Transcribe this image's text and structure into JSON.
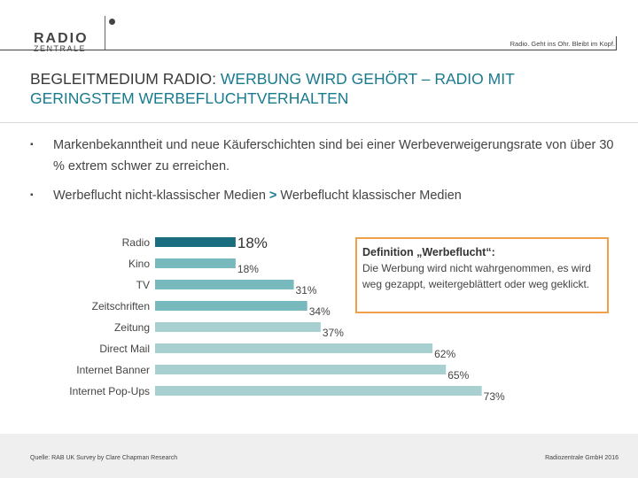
{
  "header": {
    "logo_line1": "RADIO",
    "logo_line2": "ZENTRALE",
    "tagline": "Radio. Geht ins Ohr. Bleibt im Kopf."
  },
  "title": {
    "prefix": "BEGLEITMEDIUM RADIO: ",
    "accent": "WERBUNG WIRD GEHÖRT – RADIO MIT GERINGSTEM WERBEFLUCHTVERHALTEN"
  },
  "bullets": [
    {
      "mark": "▪",
      "text": "Markenbekanntheit und neue Käuferschichten sind bei einer Werbeverweigerungsrate von über 30 % extrem schwer zu erreichen."
    },
    {
      "mark": "▪",
      "text_a": "Werbeflucht nicht-klassischer Medien ",
      "text_op": ">",
      "text_b": " Werbeflucht klassischer Medien"
    }
  ],
  "definition": {
    "heading": "Definition „Werbeflucht“:",
    "body": "Die Werbung wird nicht wahrgenommen, es wird weg gezappt, weitergeblättert oder weg geklickt."
  },
  "chart_data": {
    "type": "bar",
    "orientation": "horizontal",
    "categories": [
      "Radio",
      "Kino",
      "TV",
      "Zeitschriften",
      "Zeitung",
      "Direct Mail",
      "Internet Banner",
      "Internet Pop-Ups"
    ],
    "values": [
      18,
      18,
      31,
      34,
      37,
      62,
      65,
      73
    ],
    "value_labels": [
      "18%",
      "18%",
      "31%",
      "34%",
      "37%",
      "62%",
      "65%",
      "73%"
    ],
    "highlight_index": 0,
    "xlim": [
      0,
      100
    ],
    "colors": {
      "highlight": "#1a6e80",
      "dark": "#78b9bd",
      "light": "#a8d0d0"
    },
    "light_from_index": 4
  },
  "footer": {
    "source": "Quelle: RAB UK Survey by Clare Chapman Research",
    "copyright": "Radiozentrale GmbH 2016"
  }
}
